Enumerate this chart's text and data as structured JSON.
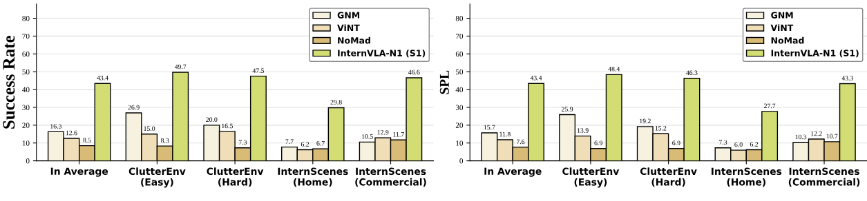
{
  "chart_data": [
    {
      "type": "bar",
      "ylabel": "Success Rate",
      "categories": [
        "In Average",
        "ClutterEnv\n(Easy)",
        "ClutterEnv\n(Hard)",
        "InternScenes\n(Home)",
        "InternScenes\n(Commercial)"
      ],
      "ylim": [
        0,
        88
      ],
      "yticks": [
        0,
        10,
        20,
        30,
        40,
        50,
        60,
        70,
        80
      ],
      "grid": "y",
      "legend": "top right",
      "series": [
        {
          "name": "GNM",
          "color": "#f7f2e0",
          "values": [
            16.3,
            26.9,
            20.0,
            7.7,
            10.5
          ],
          "value_labels": [
            "16.3",
            "26.9",
            "20.0",
            "7.7",
            "10.5"
          ]
        },
        {
          "name": "ViNT",
          "color": "#f0deb8",
          "values": [
            12.6,
            15.0,
            16.5,
            6.2,
            12.9
          ],
          "value_labels": [
            "12.6",
            "15.0",
            "16.5",
            "6.2",
            "12.9"
          ]
        },
        {
          "name": "NoMad",
          "color": "#d9bb78",
          "values": [
            8.5,
            8.3,
            7.3,
            6.7,
            11.7
          ],
          "value_labels": [
            "8.5",
            "8.3",
            "7.3",
            "6.7",
            "11.7"
          ]
        },
        {
          "name": "InternVLA-N1 (S1)",
          "color": "#d2dd74",
          "values": [
            43.4,
            49.7,
            47.5,
            29.8,
            46.6
          ],
          "value_labels": [
            "43.4",
            "49.7",
            "47.5",
            "29.8",
            "46.6"
          ]
        }
      ]
    },
    {
      "type": "bar",
      "ylabel": "SPL",
      "categories": [
        "In Average",
        "ClutterEnv\n(Easy)",
        "ClutterEnv\n(Hard)",
        "InternScenes\n(Home)",
        "InternScenes\n(Commercial)"
      ],
      "ylim": [
        0,
        88
      ],
      "yticks": [
        0,
        10,
        20,
        30,
        40,
        50,
        60,
        70,
        80
      ],
      "grid": "y",
      "legend": "top right",
      "series": [
        {
          "name": "GNM",
          "color": "#f7f2e0",
          "values": [
            15.7,
            25.9,
            19.2,
            7.3,
            10.3
          ],
          "value_labels": [
            "15.7",
            "25.9",
            "19.2",
            "7.3",
            "10.3"
          ]
        },
        {
          "name": "ViNT",
          "color": "#f0deb8",
          "values": [
            11.8,
            13.9,
            15.2,
            6.0,
            12.2
          ],
          "value_labels": [
            "11.8",
            "13.9",
            "15.2",
            "6.0",
            "12.2"
          ]
        },
        {
          "name": "NoMad",
          "color": "#d9bb78",
          "values": [
            7.6,
            6.9,
            6.9,
            6.2,
            10.7
          ],
          "value_labels": [
            "7.6",
            "6.9",
            "6.9",
            "6.2",
            "10.7"
          ]
        },
        {
          "name": "InternVLA-N1 (S1)",
          "color": "#d2dd74",
          "values": [
            43.4,
            48.4,
            46.3,
            27.7,
            43.3
          ],
          "value_labels": [
            "43.4",
            "48.4",
            "46.3",
            "27.7",
            "43.3"
          ]
        }
      ]
    }
  ]
}
